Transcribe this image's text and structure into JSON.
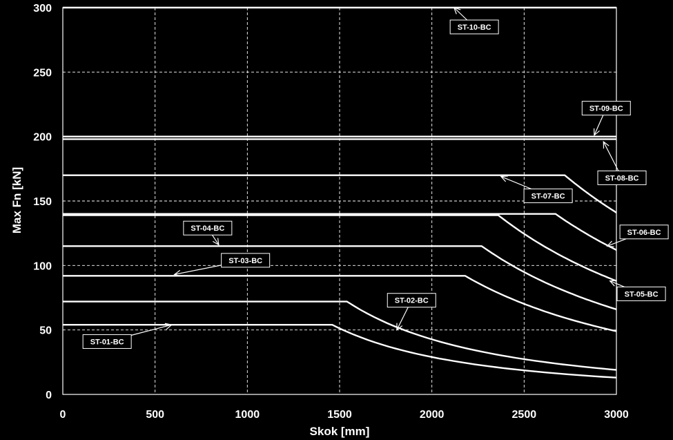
{
  "chart_data": {
    "type": "line",
    "title": "",
    "xlabel": "Skok [mm]",
    "ylabel": "Max Fn [kN]",
    "xlim": [
      0,
      3000
    ],
    "ylim": [
      0,
      300
    ],
    "x_ticks": [
      0,
      500,
      1000,
      1500,
      2000,
      2500,
      3000
    ],
    "y_ticks": [
      0,
      50,
      100,
      150,
      200,
      250,
      300
    ],
    "x_tick_labels": [
      "0",
      "500",
      "1000",
      "1500",
      "2000",
      "2500",
      "3000"
    ],
    "y_tick_labels": [
      "0",
      "50",
      "100",
      "150",
      "200",
      "250",
      "300"
    ],
    "grid": true,
    "line_color": "#ffffff",
    "background": "#000000",
    "series": [
      {
        "name": "ST-01-BC",
        "plateau": 54,
        "knee_x": 1460,
        "end_y": 13
      },
      {
        "name": "ST-02-BC",
        "plateau": 72,
        "knee_x": 1540,
        "end_y": 19
      },
      {
        "name": "ST-03-BC",
        "plateau": 92,
        "knee_x": 2180,
        "end_y": 49
      },
      {
        "name": "ST-04-BC",
        "plateau": 115,
        "knee_x": 2270,
        "end_y": 66
      },
      {
        "name": "ST-05-BC",
        "plateau": 139,
        "knee_x": 2360,
        "end_y": 88
      },
      {
        "name": "ST-06-BC",
        "plateau": 140,
        "knee_x": 2670,
        "end_y": 112
      },
      {
        "name": "ST-07-BC",
        "plateau": 170,
        "knee_x": 2720,
        "end_y": 141
      },
      {
        "name": "ST-08-BC",
        "plateau": 198,
        "knee_x": 3000,
        "end_y": 198
      },
      {
        "name": "ST-09-BC",
        "plateau": 200,
        "knee_x": 3000,
        "end_y": 200
      },
      {
        "name": "ST-10-BC",
        "plateau": 300,
        "knee_x": 3000,
        "end_y": 300
      }
    ],
    "annotations": [
      {
        "text": "ST-01-BC",
        "series": "ST-01-BC",
        "box": [
          240,
          41
        ],
        "point": [
          590,
          54
        ]
      },
      {
        "text": "ST-02-BC",
        "series": "ST-02-BC",
        "box": [
          1890,
          73
        ],
        "point": [
          1810,
          50
        ]
      },
      {
        "text": "ST-03-BC",
        "series": "ST-03-BC",
        "box": [
          990,
          104
        ],
        "point": [
          605,
          93
        ]
      },
      {
        "text": "ST-04-BC",
        "series": "ST-04-BC",
        "box": [
          785,
          129
        ],
        "point": [
          845,
          116
        ]
      },
      {
        "text": "ST-05-BC",
        "series": "ST-05-BC",
        "box": [
          3135,
          78
        ],
        "point": [
          2965,
          88
        ]
      },
      {
        "text": "ST-06-BC",
        "series": "ST-06-BC",
        "box": [
          3150,
          126
        ],
        "point": [
          2950,
          115
        ]
      },
      {
        "text": "ST-07-BC",
        "series": "ST-07-BC",
        "box": [
          2630,
          154
        ],
        "point": [
          2375,
          169
        ]
      },
      {
        "text": "ST-08-BC",
        "series": "ST-08-BC",
        "box": [
          3030,
          168
        ],
        "point": [
          2930,
          196
        ]
      },
      {
        "text": "ST-09-BC",
        "series": "ST-09-BC",
        "box": [
          2945,
          222
        ],
        "point": [
          2880,
          201
        ]
      },
      {
        "text": "ST-10-BC",
        "series": "ST-10-BC",
        "box": [
          2230,
          285
        ],
        "point": [
          2120,
          300
        ]
      }
    ]
  }
}
